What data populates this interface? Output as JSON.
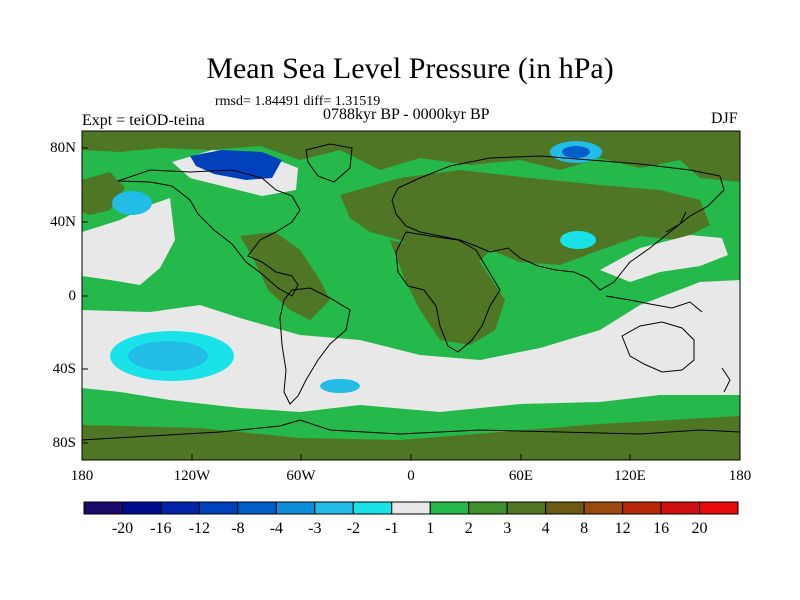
{
  "title": "Mean Sea Level Pressure (in hPa)",
  "stats": "rmsd= 1.84491  diff= 1.31519",
  "period": "0788kyr BP - 0000kyr BP",
  "experiment": "Expt = teiOD-teina",
  "season": "DJF",
  "lat_labels": [
    "80N",
    "40N",
    "0",
    "40S",
    "80S"
  ],
  "lon_labels": [
    "180",
    "120W",
    "60W",
    "0",
    "60E",
    "120E",
    "180"
  ],
  "colorbar": {
    "labels": [
      "-20",
      "-16",
      "-12",
      "-8",
      "-4",
      "-3",
      "-2",
      "-1",
      "1",
      "2",
      "3",
      "4",
      "8",
      "12",
      "16",
      "20"
    ],
    "colors": [
      "#1b0a6b",
      "#000a8f",
      "#0024a8",
      "#0040bb",
      "#005ec8",
      "#0c8fd8",
      "#22bce6",
      "#19e3e8",
      "#e8e8e8",
      "#25b84a",
      "#3f8f2a",
      "#4f7624",
      "#6a5a14",
      "#9a4a0c",
      "#b82808",
      "#d01010",
      "#e80a0a"
    ]
  },
  "colors": {
    "land_green": "#25b84a",
    "olive": "#4f7624",
    "white_band": "#e8e8e8",
    "coast": "#000000"
  }
}
